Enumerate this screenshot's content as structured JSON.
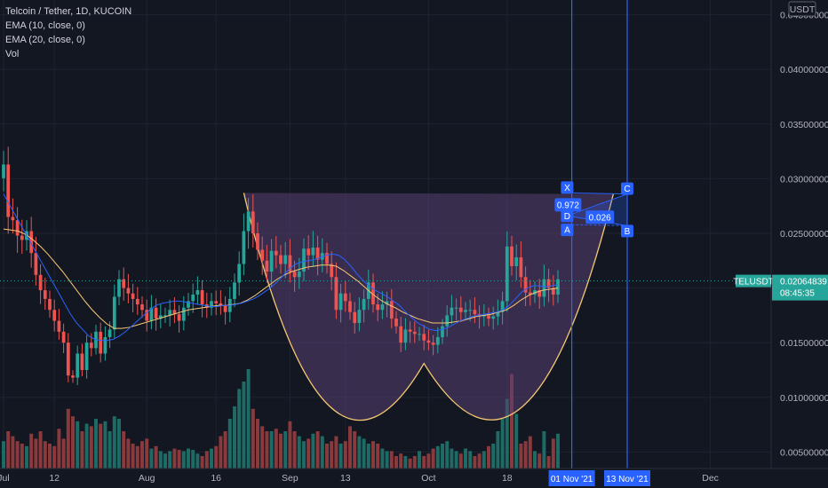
{
  "legend": {
    "title": "Telcoin / Tether, 1D, KUCOIN",
    "ema10": "EMA (10, close, 0)",
    "ema20": "EMA (20, close, 0)",
    "vol": "Vol"
  },
  "currency_label": "USDT",
  "price_tag": {
    "symbol": "TELUSDT",
    "price": "0.02064839",
    "countdown": "08:45:35",
    "value": 0.02064839
  },
  "colors": {
    "background": "#131722",
    "up": "#26a69a",
    "down": "#ef5350",
    "vol_up": "#1e6b65",
    "vol_down": "#8a3a3c",
    "ema10": "#2962ff",
    "ema20": "#f7c873",
    "pattern_fill": "#5a3f73",
    "lines": "#2962ff"
  },
  "chart_data": {
    "type": "candlestick",
    "y_ticks": [
      "0.04500000",
      "0.04000000",
      "0.03500000",
      "0.03000000",
      "0.02500000",
      "0.02000000",
      "0.01500000",
      "0.01000000",
      "0.00500000"
    ],
    "y_tick_values": [
      0.045,
      0.04,
      0.035,
      0.03,
      0.025,
      0.02,
      0.015,
      0.01,
      0.005
    ],
    "ylim": [
      0.0043,
      0.0457
    ],
    "x_ticks": [
      {
        "label": "Jul",
        "day": 0
      },
      {
        "label": "12",
        "day": 11
      },
      {
        "label": "Aug",
        "day": 31
      },
      {
        "label": "16",
        "day": 46
      },
      {
        "label": "Sep",
        "day": 62
      },
      {
        "label": "13",
        "day": 74
      },
      {
        "label": "Oct",
        "day": 92
      },
      {
        "label": "18",
        "day": 109
      },
      {
        "label": "Dec",
        "day": 153
      }
    ],
    "date_markers": [
      {
        "label": "01 Nov '21",
        "day": 123
      },
      {
        "label": "13 Nov '21",
        "day": 135
      }
    ],
    "closes": [
      0.0313,
      0.0265,
      0.0262,
      0.0248,
      0.0244,
      0.0252,
      0.0232,
      0.0212,
      0.0198,
      0.019,
      0.018,
      0.017,
      0.016,
      0.015,
      0.012,
      0.0118,
      0.014,
      0.0125,
      0.015,
      0.0145,
      0.016,
      0.014,
      0.0155,
      0.0162,
      0.0192,
      0.0208,
      0.02,
      0.0195,
      0.019,
      0.0185,
      0.018,
      0.017,
      0.0182,
      0.0172,
      0.0175,
      0.0175,
      0.018,
      0.0176,
      0.017,
      0.0182,
      0.0188,
      0.0194,
      0.0198,
      0.0185,
      0.0182,
      0.0188,
      0.0186,
      0.0184,
      0.0178,
      0.019,
      0.0205,
      0.0222,
      0.0252,
      0.027,
      0.025,
      0.0235,
      0.0225,
      0.0215,
      0.0234,
      0.023,
      0.0222,
      0.023,
      0.0215,
      0.021,
      0.0215,
      0.0236,
      0.023,
      0.0237,
      0.0226,
      0.0232,
      0.0222,
      0.021,
      0.018,
      0.0195,
      0.0188,
      0.0178,
      0.0168,
      0.018,
      0.019,
      0.0205,
      0.0185,
      0.018,
      0.0185,
      0.0188,
      0.0172,
      0.0165,
      0.015,
      0.0162,
      0.016,
      0.0158,
      0.0158,
      0.0152,
      0.015,
      0.0148,
      0.0155,
      0.0165,
      0.0175,
      0.0182,
      0.0182,
      0.0178,
      0.018,
      0.018,
      0.0176,
      0.0174,
      0.0175,
      0.0172,
      0.0174,
      0.0178,
      0.0188,
      0.0238,
      0.022,
      0.0228,
      0.021,
      0.0196,
      0.0194,
      0.0198,
      0.0192,
      0.0208,
      0.02,
      0.0194,
      0.0208
    ],
    "ema10_values": [
      0.0286,
      0.0276,
      0.0266,
      0.0256,
      0.0246,
      0.0236,
      0.0226,
      0.0216,
      0.0206,
      0.0196,
      0.0186,
      0.0176,
      0.0168,
      0.0162,
      0.0156,
      0.0153,
      0.0152,
      0.0152,
      0.0153,
      0.0156,
      0.016,
      0.0165,
      0.017,
      0.0175,
      0.018,
      0.0184,
      0.0186,
      0.0187,
      0.0188,
      0.0188,
      0.0187,
      0.0186,
      0.0185,
      0.0184,
      0.0183,
      0.0183,
      0.0184,
      0.0184,
      0.0185,
      0.0186,
      0.0188,
      0.019,
      0.0193,
      0.0197,
      0.0201,
      0.0206,
      0.0212,
      0.0218,
      0.0222,
      0.0224,
      0.0225,
      0.0226,
      0.0228,
      0.023,
      0.0231,
      0.023,
      0.0226,
      0.022,
      0.0213,
      0.0207,
      0.0202,
      0.0198,
      0.0195,
      0.0192,
      0.0188,
      0.0184,
      0.0178,
      0.0173,
      0.0168,
      0.0165,
      0.0162,
      0.0161,
      0.0162,
      0.0164,
      0.0167,
      0.017,
      0.0172,
      0.0174,
      0.0175,
      0.0176,
      0.0177,
      0.0178,
      0.018,
      0.0184,
      0.019,
      0.0196,
      0.02,
      0.0202,
      0.0202,
      0.0201,
      0.0202,
      0.0203
    ],
    "ema10_start_day": 0,
    "ema20_values": [
      0.0254,
      0.0253,
      0.0252,
      0.0249,
      0.0244,
      0.0238,
      0.0231,
      0.0223,
      0.0215,
      0.0206,
      0.0197,
      0.0188,
      0.018,
      0.0173,
      0.0167,
      0.0163,
      0.0163,
      0.0164,
      0.0166,
      0.0168,
      0.017,
      0.0172,
      0.0174,
      0.0176,
      0.0178,
      0.018,
      0.0181,
      0.0182,
      0.0183,
      0.0184,
      0.0184,
      0.0185,
      0.0186,
      0.0189,
      0.0193,
      0.0198,
      0.0203,
      0.0208,
      0.0212,
      0.0215,
      0.0217,
      0.0219,
      0.022,
      0.0221,
      0.0221,
      0.022,
      0.0216,
      0.0211,
      0.0206,
      0.02,
      0.0194,
      0.0189,
      0.0185,
      0.0182,
      0.0178,
      0.0175,
      0.0172,
      0.017,
      0.0168,
      0.0168,
      0.0168,
      0.0169,
      0.017,
      0.0172,
      0.0174,
      0.0175,
      0.0176,
      0.0178,
      0.018,
      0.0184,
      0.0189,
      0.0193,
      0.0196,
      0.0198,
      0.0199,
      0.02
    ],
    "ema20_start_day": 0,
    "volume": [
      0.22,
      0.3,
      0.26,
      0.22,
      0.2,
      0.18,
      0.28,
      0.24,
      0.3,
      0.22,
      0.2,
      0.18,
      0.32,
      0.24,
      0.48,
      0.42,
      0.38,
      0.3,
      0.36,
      0.34,
      0.4,
      0.36,
      0.38,
      0.3,
      0.42,
      0.4,
      0.3,
      0.24,
      0.2,
      0.18,
      0.22,
      0.24,
      0.16,
      0.18,
      0.14,
      0.12,
      0.14,
      0.16,
      0.15,
      0.14,
      0.16,
      0.15,
      0.12,
      0.1,
      0.14,
      0.16,
      0.18,
      0.26,
      0.3,
      0.4,
      0.5,
      0.64,
      0.7,
      0.8,
      0.48,
      0.4,
      0.34,
      0.3,
      0.3,
      0.32,
      0.28,
      0.3,
      0.38,
      0.3,
      0.26,
      0.22,
      0.24,
      0.28,
      0.3,
      0.26,
      0.2,
      0.22,
      0.26,
      0.2,
      0.22,
      0.34,
      0.3,
      0.26,
      0.24,
      0.2,
      0.22,
      0.2,
      0.16,
      0.14,
      0.14,
      0.1,
      0.12,
      0.1,
      0.08,
      0.1,
      0.14,
      0.1,
      0.12,
      0.16,
      0.18,
      0.2,
      0.22,
      0.16,
      0.14,
      0.12,
      0.16,
      0.14,
      0.1,
      0.12,
      0.14,
      0.18,
      0.2,
      0.3,
      0.4,
      0.56,
      0.76,
      0.44,
      0.2,
      0.22,
      0.26,
      0.14,
      0.12,
      0.3,
      0.1,
      0.24,
      0.28
    ],
    "cup": {
      "left": [
        52,
        0.0287
      ],
      "bottom": [
        91,
        0.0131
      ],
      "right": [
        132,
        0.0286
      ]
    },
    "xabcd": {
      "X": {
        "label": "X",
        "day": 122,
        "value": 0.0287
      },
      "A": {
        "label": "A",
        "day": 122,
        "value": 0.0258
      },
      "B": {
        "label": "B",
        "day": 135,
        "value": 0.0257
      },
      "C": {
        "label": "C",
        "day": 135,
        "value": 0.0286
      },
      "D": {
        "label": "D",
        "day": 122,
        "value": 0.0266
      },
      "ratio_xd": "0.972",
      "ratio_bd": "0.026"
    }
  }
}
